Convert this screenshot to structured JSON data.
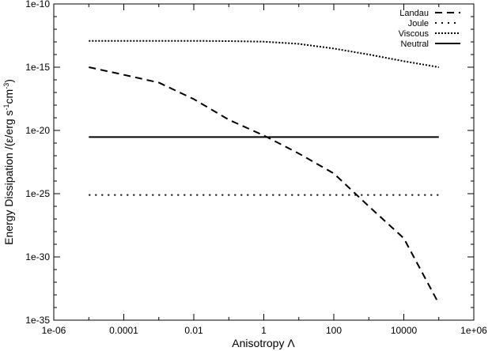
{
  "chart_data": {
    "type": "line",
    "xlabel": "Anisotropy Λ",
    "ylabel_parts": {
      "pre": "Energy Dissipation /(ε/erg s",
      "sup1": "-1",
      "mid": "cm",
      "sup2": "-3",
      "post": ")"
    },
    "x_scale": "log",
    "y_scale": "log",
    "xlim": [
      1e-06,
      1000000.0
    ],
    "ylim": [
      1e-35,
      1e-10
    ],
    "x_ticks": [
      {
        "value": 1e-06,
        "label": "1e-06"
      },
      {
        "value": 0.0001,
        "label": "0.0001"
      },
      {
        "value": 0.01,
        "label": "0.01"
      },
      {
        "value": 1,
        "label": "1"
      },
      {
        "value": 100,
        "label": "100"
      },
      {
        "value": 10000.0,
        "label": "10000"
      },
      {
        "value": 1000000.0,
        "label": "1e+06"
      }
    ],
    "y_ticks": [
      {
        "value": 1e-35,
        "label": "1e-35"
      },
      {
        "value": 1e-30,
        "label": "1e-30"
      },
      {
        "value": 1e-25,
        "label": "1e-25"
      },
      {
        "value": 1e-20,
        "label": "1e-20"
      },
      {
        "value": 1e-15,
        "label": "1e-15"
      },
      {
        "value": 1e-10,
        "label": "1e-10"
      }
    ],
    "grid": false,
    "legend_position": "top-right",
    "series": [
      {
        "name": "Landau",
        "style": "dashed",
        "color": "#000000",
        "x": [
          1e-05,
          0.0001,
          0.001,
          0.01,
          0.1,
          1,
          10,
          100,
          1000.0,
          10000.0,
          100000.0
        ],
        "y": [
          1e-15,
          2.5e-16,
          6e-17,
          3e-18,
          7e-20,
          4e-21,
          1.5e-22,
          4e-24,
          1e-26,
          3e-29,
          2e-34
        ]
      },
      {
        "name": "Joule",
        "style": "dotted-sparse",
        "color": "#000000",
        "x": [
          1e-05,
          100000.0
        ],
        "y": [
          8e-26,
          8e-26
        ]
      },
      {
        "name": "Viscous",
        "style": "dotted-dense",
        "color": "#000000",
        "x": [
          1e-05,
          0.0001,
          0.001,
          0.01,
          0.1,
          1,
          10,
          100,
          1000.0,
          10000.0,
          100000.0
        ],
        "y": [
          1.2e-13,
          1.2e-13,
          1.2e-13,
          1.2e-13,
          1.15e-13,
          1.05e-13,
          7e-14,
          3e-14,
          1e-14,
          3e-15,
          1e-15
        ]
      },
      {
        "name": "Neutral",
        "style": "solid",
        "color": "#000000",
        "x": [
          1e-05,
          100000.0
        ],
        "y": [
          3e-21,
          3e-21
        ]
      }
    ]
  }
}
